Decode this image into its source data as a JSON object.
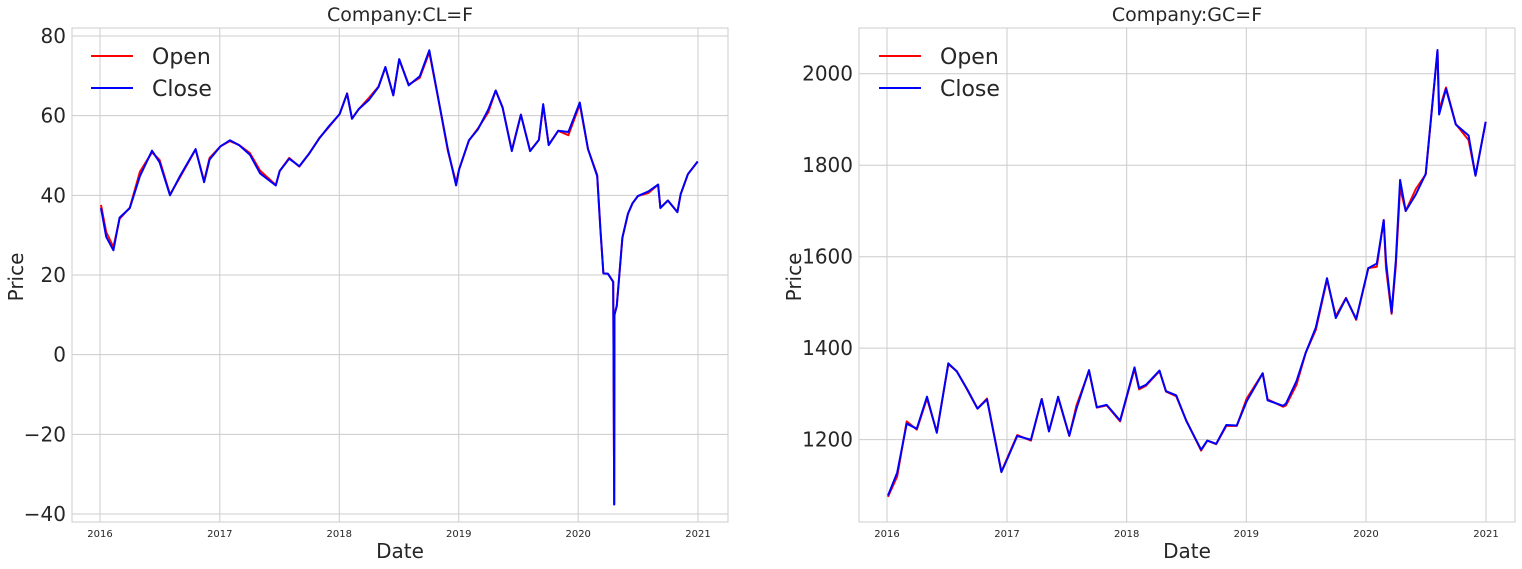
{
  "chart_data": [
    {
      "type": "line",
      "title": "Company:CL=F",
      "xlabel": "Date",
      "ylabel": "Price",
      "xlim": [
        "2016-01-01",
        "2021-01-01"
      ],
      "ylim": [
        -42,
        82
      ],
      "x_ticks": [
        "2016",
        "2017",
        "2018",
        "2019",
        "2020",
        "2021"
      ],
      "y_ticks": [
        -40,
        -20,
        0,
        20,
        40,
        60,
        80
      ],
      "y_tick_labels": [
        "−40",
        "−20",
        "0",
        "20",
        "40",
        "60",
        "80"
      ],
      "grid": true,
      "legend": "top-left",
      "x": [
        "2016-01-04",
        "2016-01-20",
        "2016-02-11",
        "2016-03-01",
        "2016-04-01",
        "2016-05-02",
        "2016-06-08",
        "2016-07-01",
        "2016-08-02",
        "2016-09-01",
        "2016-10-19",
        "2016-11-14",
        "2016-12-01",
        "2017-01-03",
        "2017-02-01",
        "2017-03-01",
        "2017-04-03",
        "2017-05-04",
        "2017-06-21",
        "2017-07-03",
        "2017-08-01",
        "2017-09-01",
        "2017-10-02",
        "2017-11-01",
        "2017-12-01",
        "2018-01-02",
        "2018-01-25",
        "2018-02-09",
        "2018-03-01",
        "2018-04-02",
        "2018-05-01",
        "2018-05-22",
        "2018-06-15",
        "2018-07-03",
        "2018-08-01",
        "2018-09-04",
        "2018-10-03",
        "2018-11-01",
        "2018-11-29",
        "2018-12-24",
        "2019-01-02",
        "2019-02-01",
        "2019-03-01",
        "2019-04-01",
        "2019-04-24",
        "2019-05-15",
        "2019-06-12",
        "2019-07-10",
        "2019-08-07",
        "2019-09-03",
        "2019-09-16",
        "2019-10-03",
        "2019-11-01",
        "2019-12-02",
        "2020-01-06",
        "2020-01-31",
        "2020-02-28",
        "2020-03-09",
        "2020-03-18",
        "2020-04-01",
        "2020-04-17",
        "2020-04-20",
        "2020-04-21",
        "2020-04-28",
        "2020-05-15",
        "2020-06-01",
        "2020-06-15",
        "2020-07-01",
        "2020-08-03",
        "2020-09-01",
        "2020-09-08",
        "2020-10-01",
        "2020-10-30",
        "2020-11-09",
        "2020-12-01",
        "2020-12-31"
      ],
      "series": [
        {
          "name": "Open",
          "color": "#ff0000",
          "values": [
            37.6,
            30.8,
            27.0,
            34.1,
            36.9,
            45.9,
            50.8,
            48.9,
            40.2,
            44.5,
            51.5,
            43.6,
            49.4,
            52.3,
            53.6,
            52.6,
            50.6,
            46.2,
            42.6,
            46.1,
            49.4,
            47.2,
            50.6,
            54.4,
            57.2,
            60.4,
            65.6,
            59.3,
            61.6,
            64.5,
            67.3,
            72.1,
            65.1,
            74.1,
            67.8,
            69.5,
            75.9,
            63.5,
            51.1,
            43.2,
            46.5,
            53.7,
            56.8,
            60.8,
            66.3,
            62.1,
            51.3,
            60.3,
            51.2,
            53.9,
            62.5,
            52.7,
            56.2,
            55.1,
            62.8,
            51.6,
            45.1,
            31.2,
            20.4,
            20.3,
            18.3,
            -37.6,
            10.0,
            12.3,
            29.4,
            35.4,
            38.0,
            39.8,
            40.6,
            42.7,
            36.9,
            38.7,
            35.8,
            40.3,
            45.3,
            48.5
          ]
        },
        {
          "name": "Close",
          "color": "#0000ff",
          "values": [
            36.8,
            29.6,
            26.2,
            34.4,
            36.8,
            44.8,
            51.2,
            48.3,
            40.0,
            44.8,
            51.6,
            43.3,
            49.0,
            52.3,
            53.8,
            52.6,
            50.2,
            45.5,
            42.5,
            46.1,
            49.2,
            47.3,
            50.6,
            54.3,
            57.4,
            60.4,
            65.5,
            59.2,
            61.6,
            64.0,
            67.2,
            72.2,
            65.1,
            74.2,
            67.6,
            69.9,
            76.4,
            63.6,
            51.5,
            42.5,
            46.5,
            53.8,
            56.6,
            61.5,
            66.3,
            62.0,
            51.1,
            60.2,
            51.1,
            53.9,
            62.9,
            52.6,
            56.2,
            55.9,
            63.3,
            51.6,
            44.8,
            31.1,
            20.4,
            20.3,
            18.3,
            -37.6,
            10.0,
            12.3,
            29.4,
            35.4,
            38.0,
            39.8,
            41.0,
            42.7,
            36.8,
            38.7,
            35.8,
            40.3,
            45.3,
            48.5
          ]
        }
      ]
    },
    {
      "type": "line",
      "title": "Company:GC=F",
      "xlabel": "Date",
      "ylabel": "Price",
      "xlim": [
        "2016-01-01",
        "2021-01-01"
      ],
      "ylim": [
        1020,
        2100
      ],
      "x_ticks": [
        "2016",
        "2017",
        "2018",
        "2019",
        "2020",
        "2021"
      ],
      "y_ticks": [
        1200,
        1400,
        1600,
        1800,
        2000
      ],
      "y_tick_labels": [
        "1200",
        "1400",
        "1600",
        "1800",
        "2000"
      ],
      "grid": true,
      "legend": "top-left",
      "x": [
        "2016-01-04",
        "2016-02-01",
        "2016-03-01",
        "2016-04-01",
        "2016-05-02",
        "2016-06-01",
        "2016-07-06",
        "2016-08-01",
        "2016-09-01",
        "2016-10-03",
        "2016-11-01",
        "2016-12-15",
        "2017-01-03",
        "2017-02-01",
        "2017-03-15",
        "2017-04-17",
        "2017-05-09",
        "2017-06-06",
        "2017-07-10",
        "2017-08-01",
        "2017-09-08",
        "2017-10-02",
        "2017-11-01",
        "2017-12-12",
        "2018-01-25",
        "2018-02-08",
        "2018-03-01",
        "2018-04-11",
        "2018-05-01",
        "2018-06-01",
        "2018-07-02",
        "2018-08-16",
        "2018-09-04",
        "2018-10-01",
        "2018-11-01",
        "2018-12-03",
        "2019-01-02",
        "2019-02-20",
        "2019-03-07",
        "2019-04-23",
        "2019-05-02",
        "2019-06-03",
        "2019-07-01",
        "2019-08-01",
        "2019-09-04",
        "2019-10-01",
        "2019-11-01",
        "2019-12-02",
        "2020-01-08",
        "2020-02-03",
        "2020-02-24",
        "2020-03-02",
        "2020-03-19",
        "2020-04-01",
        "2020-04-14",
        "2020-05-01",
        "2020-06-01",
        "2020-07-01",
        "2020-08-06",
        "2020-08-11",
        "2020-09-01",
        "2020-10-01",
        "2020-11-09",
        "2020-11-30",
        "2020-12-31"
      ],
      "series": [
        {
          "name": "Open",
          "color": "#ff0000",
          "values": [
            1075,
            1120,
            1240,
            1222,
            1290,
            1217,
            1365,
            1350,
            1310,
            1268,
            1290,
            1130,
            1162,
            1210,
            1198,
            1289,
            1218,
            1292,
            1208,
            1275,
            1350,
            1270,
            1275,
            1240,
            1355,
            1310,
            1318,
            1350,
            1305,
            1295,
            1242,
            1176,
            1198,
            1190,
            1230,
            1230,
            1290,
            1345,
            1288,
            1272,
            1275,
            1320,
            1390,
            1440,
            1550,
            1470,
            1510,
            1462,
            1575,
            1578,
            1680,
            1575,
            1475,
            1580,
            1750,
            1700,
            1748,
            1780,
            2050,
            1920,
            1970,
            1890,
            1855,
            1777,
            1895
          ]
        },
        {
          "name": "Close",
          "color": "#0000ff",
          "values": [
            1078,
            1128,
            1235,
            1224,
            1294,
            1215,
            1367,
            1349,
            1311,
            1268,
            1288,
            1129,
            1160,
            1208,
            1200,
            1289,
            1218,
            1294,
            1209,
            1268,
            1352,
            1271,
            1276,
            1242,
            1358,
            1313,
            1320,
            1351,
            1306,
            1297,
            1241,
            1178,
            1198,
            1191,
            1232,
            1231,
            1284,
            1345,
            1286,
            1274,
            1279,
            1328,
            1390,
            1445,
            1553,
            1466,
            1509,
            1464,
            1575,
            1585,
            1680,
            1590,
            1478,
            1591,
            1768,
            1700,
            1736,
            1781,
            2052,
            1911,
            1967,
            1889,
            1865,
            1777,
            1895
          ]
        }
      ]
    }
  ]
}
